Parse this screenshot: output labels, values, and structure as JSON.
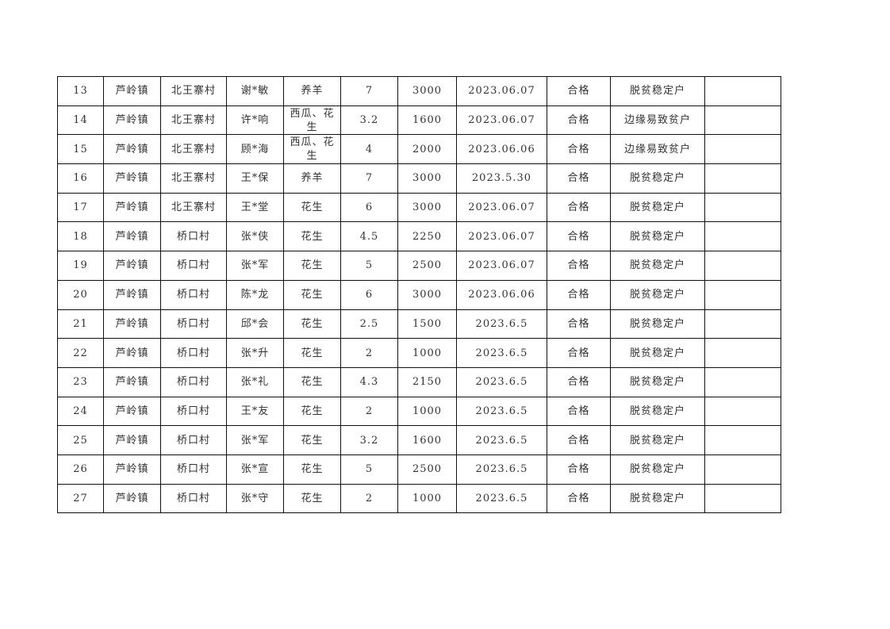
{
  "rows": [
    [
      "13",
      "芦岭镇",
      "北王寨村",
      "谢*敏",
      "养羊",
      "7",
      "3000",
      "2023.06.07",
      "合格",
      "脱贫稳定户",
      ""
    ],
    [
      "14",
      "芦岭镇",
      "北王寨村",
      "许*响",
      "西瓜、花生",
      "3.2",
      "1600",
      "2023.06.07",
      "合格",
      "边缘易致贫户",
      ""
    ],
    [
      "15",
      "芦岭镇",
      "北王寨村",
      "顾*海",
      "西瓜、花生",
      "4",
      "2000",
      "2023.06.06",
      "合格",
      "边缘易致贫户",
      ""
    ],
    [
      "16",
      "芦岭镇",
      "北王寨村",
      "王*保",
      "养羊",
      "7",
      "3000",
      "2023.5.30",
      "合格",
      "脱贫稳定户",
      ""
    ],
    [
      "17",
      "芦岭镇",
      "北王寨村",
      "王*堂",
      "花生",
      "6",
      "3000",
      "2023.06.07",
      "合格",
      "脱贫稳定户",
      ""
    ],
    [
      "18",
      "芦岭镇",
      "桥口村",
      "张*侠",
      "花生",
      "4.5",
      "2250",
      "2023.06.07",
      "合格",
      "脱贫稳定户",
      ""
    ],
    [
      "19",
      "芦岭镇",
      "桥口村",
      "张*军",
      "花生",
      "5",
      "2500",
      "2023.06.07",
      "合格",
      "脱贫稳定户",
      ""
    ],
    [
      "20",
      "芦岭镇",
      "桥口村",
      "陈*龙",
      "花生",
      "6",
      "3000",
      "2023.06.06",
      "合格",
      "脱贫稳定户",
      ""
    ],
    [
      "21",
      "芦岭镇",
      "桥口村",
      "邱*会",
      "花生",
      "2.5",
      "1500",
      "2023.6.5",
      "合格",
      "脱贫稳定户",
      ""
    ],
    [
      "22",
      "芦岭镇",
      "桥口村",
      "张*升",
      "花生",
      "2",
      "1000",
      "2023.6.5",
      "合格",
      "脱贫稳定户",
      ""
    ],
    [
      "23",
      "芦岭镇",
      "桥口村",
      "张*礼",
      "花生",
      "4.3",
      "2150",
      "2023.6.5",
      "合格",
      "脱贫稳定户",
      ""
    ],
    [
      "24",
      "芦岭镇",
      "桥口村",
      "王*友",
      "花生",
      "2",
      "1000",
      "2023.6.5",
      "合格",
      "脱贫稳定户",
      ""
    ],
    [
      "25",
      "芦岭镇",
      "桥口村",
      "张*军",
      "花生",
      "3.2",
      "1600",
      "2023.6.5",
      "合格",
      "脱贫稳定户",
      ""
    ],
    [
      "26",
      "芦岭镇",
      "桥口村",
      "张*宣",
      "花生",
      "5",
      "2500",
      "2023.6.5",
      "合格",
      "脱贫稳定户",
      ""
    ],
    [
      "27",
      "芦岭镇",
      "桥口村",
      "张*守",
      "花生",
      "2",
      "1000",
      "2023.6.5",
      "合格",
      "脱贫稳定户",
      ""
    ]
  ]
}
